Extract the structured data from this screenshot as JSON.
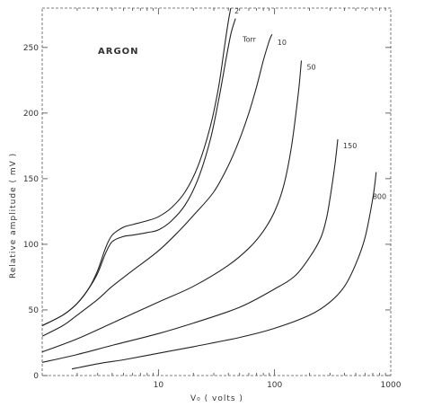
{
  "chart_data": {
    "type": "line",
    "title": "ARGON",
    "xlabel": "V₀  ( volts )",
    "ylabel": "Relative  amplitude  ( mV )",
    "xscale": "log",
    "xlim": [
      1,
      1000
    ],
    "ylim": [
      0,
      280
    ],
    "grid": false,
    "x_ticks": [
      {
        "value": 10,
        "label": "10"
      },
      {
        "value": 100,
        "label": "100"
      },
      {
        "value": 1000,
        "label": "1000"
      }
    ],
    "y_ticks": [
      {
        "value": 0,
        "label": "0"
      },
      {
        "value": 50,
        "label": "50"
      },
      {
        "value": 100,
        "label": "100"
      },
      {
        "value": 150,
        "label": "150"
      },
      {
        "value": 200,
        "label": "200"
      },
      {
        "value": 250,
        "label": "250"
      }
    ],
    "series": [
      {
        "name": "2",
        "x": [
          1,
          1.5,
          2,
          2.5,
          3,
          3.5,
          4,
          5,
          6,
          8,
          10,
          13,
          17,
          22,
          28,
          33,
          37,
          40,
          42
        ],
        "y": [
          38,
          46,
          55,
          66,
          80,
          97,
          107,
          113,
          115,
          118,
          121,
          128,
          140,
          160,
          190,
          220,
          250,
          270,
          280
        ]
      },
      {
        "name": "",
        "x": [
          1,
          1.5,
          2,
          2.5,
          3,
          3.5,
          4,
          5,
          6,
          8,
          10,
          13,
          17,
          22,
          28,
          33,
          38,
          42,
          46
        ],
        "y": [
          38,
          46,
          55,
          66,
          78,
          93,
          102,
          106,
          107,
          109,
          111,
          118,
          130,
          150,
          180,
          210,
          240,
          260,
          272
        ]
      },
      {
        "name": "10",
        "x": [
          1,
          1.5,
          2,
          3,
          4,
          6,
          10,
          15,
          20,
          30,
          40,
          50,
          60,
          70,
          80,
          90,
          95
        ],
        "y": [
          30,
          38,
          46,
          58,
          68,
          80,
          95,
          110,
          122,
          140,
          160,
          180,
          200,
          220,
          240,
          255,
          260
        ]
      },
      {
        "name": "50",
        "x": [
          1,
          2,
          4,
          10,
          20,
          40,
          60,
          80,
          100,
          120,
          140,
          160,
          170
        ],
        "y": [
          18,
          28,
          40,
          56,
          68,
          84,
          97,
          110,
          125,
          145,
          175,
          215,
          240
        ]
      },
      {
        "name": "150",
        "x": [
          1,
          2,
          4,
          10,
          20,
          50,
          100,
          150,
          200,
          250,
          280,
          300,
          330,
          350
        ],
        "y": [
          10,
          16,
          23,
          32,
          40,
          52,
          66,
          76,
          90,
          105,
          120,
          135,
          160,
          180
        ]
      },
      {
        "name": "800",
        "x": [
          1.8,
          3,
          5,
          10,
          20,
          50,
          100,
          200,
          300,
          400,
          500,
          600,
          700,
          750
        ],
        "y": [
          5,
          9,
          12,
          17,
          22,
          29,
          36,
          46,
          56,
          68,
          85,
          105,
          135,
          155
        ]
      }
    ],
    "annotations": [
      {
        "text": "2",
        "series": "2"
      },
      {
        "text": "Torr",
        "series": ""
      },
      {
        "text": "10",
        "series": "10"
      },
      {
        "text": "50",
        "series": "50"
      },
      {
        "text": "150",
        "series": "150"
      },
      {
        "text": "800",
        "series": "800"
      }
    ]
  }
}
